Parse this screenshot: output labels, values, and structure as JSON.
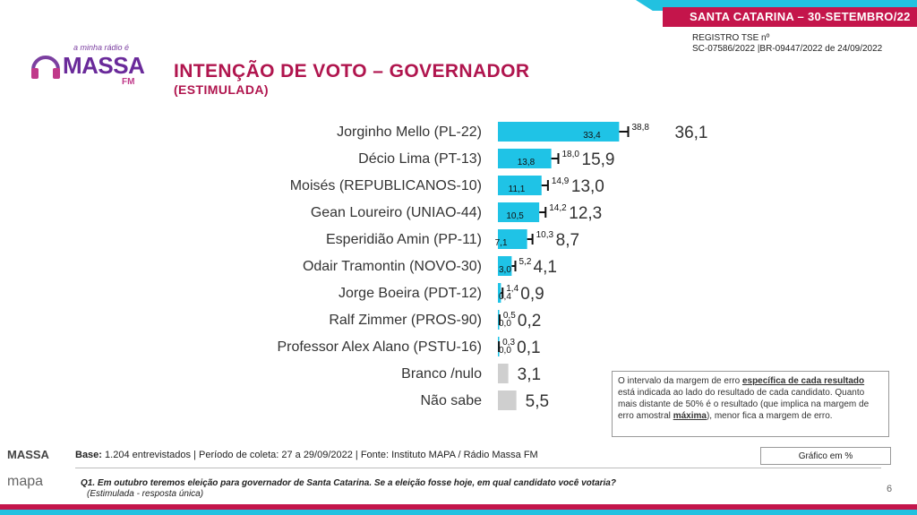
{
  "header": {
    "region_date": "SANTA CATARINA – 30-SETEMBRO/22",
    "registro_line1": "REGISTRO  TSE nº",
    "registro_line2": "SC-07586/2022 |BR-09447/2022 de 24/09/2022",
    "title": "INTENÇÃO DE VOTO – GOVERNADOR",
    "subtitle": "(ESTIMULADA)"
  },
  "logo": {
    "tagline": "a minha rádio é",
    "brand": "MASSA",
    "fm": "FM"
  },
  "colors": {
    "bar": "#1fc3e6",
    "bar_gray": "#cfcfcf",
    "accent": "#b0154e"
  },
  "chart_data": {
    "type": "bar",
    "orientation": "horizontal",
    "unit": "%",
    "categories": [
      "Jorginho Mello (PL-22)",
      "Décio Lima (PT-13)",
      "Moisés (REPUBLICANOS-10)",
      "Gean Loureiro (UNIAO-44)",
      "Esperidião Amin (PP-11)",
      "Odair Tramontin (NOVO-30)",
      "Jorge Boeira (PDT-12)",
      "Ralf Zimmer (PROS-90)",
      "Professor Alex Alano (PSTU-16)",
      "Branco /nulo",
      "Não sabe"
    ],
    "values": [
      "36,1",
      "15,9",
      "13,0",
      "12,3",
      "8,7",
      "4,1",
      "0,9",
      "0,2",
      "0,1",
      "3,1",
      "5,5"
    ],
    "lower_bounds": [
      "33,4",
      "13,8",
      "11,1",
      "10,5",
      "7,1",
      "3,0",
      "0,4",
      "0,0",
      "0,0",
      null,
      null
    ],
    "upper_bounds": [
      "38,8",
      "18,0",
      "14,9",
      "14,2",
      "10,3",
      "5,2",
      "1,4",
      "0,5",
      "0,3",
      null,
      null
    ],
    "gray_categories": [
      "Branco /nulo",
      "Não sabe"
    ]
  },
  "note": {
    "p1": "O intervalo da margem de erro ",
    "u1": "específica de cada resultado",
    "p2": " está indicada ao lado do resultado de cada candidato. Quanto mais distante de 50% é o resultado (que implica na margem de erro amostral ",
    "u2": "máxima",
    "p3": "), menor fica a margem de erro."
  },
  "chart_unit": "Gráfico em %",
  "footer": {
    "base_label": "Base:",
    "base_text": "1.204 entrevistados   |   Período de coleta: 27 a 29/09/2022   |   Fonte: Instituto MAPA / Rádio Massa FM",
    "question": "Q1. Em outubro teremos eleição para governador de Santa Catarina. Se a eleição fosse hoje, em qual candidato você votaria?",
    "question_sub": "(Estimulada - resposta única)",
    "page_number": "6",
    "logo1": "MASSA",
    "logo2": "mapa"
  }
}
